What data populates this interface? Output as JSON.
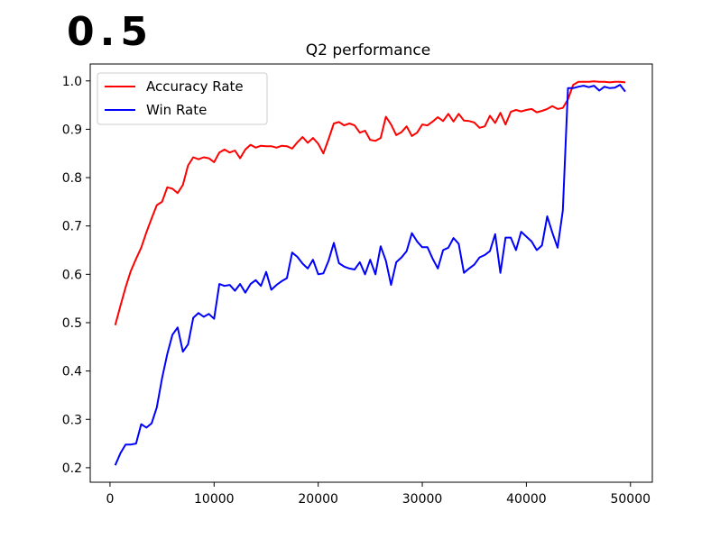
{
  "annotation": "0.5",
  "chart_data": {
    "type": "line",
    "title": "Q2 performance",
    "xlabel": "",
    "ylabel": "",
    "xlim": [
      -1900,
      52100
    ],
    "ylim": [
      0.17,
      1.035
    ],
    "xticks": [
      0,
      10000,
      20000,
      30000,
      40000,
      50000
    ],
    "yticks": [
      0.2,
      0.3,
      0.4,
      0.5,
      0.6,
      0.7,
      0.8,
      0.9,
      1.0
    ],
    "grid": false,
    "legend": "upper left",
    "series": [
      {
        "name": "Accuracy Rate",
        "color": "#ff0000",
        "x": [
          500,
          1000,
          1500,
          2000,
          2500,
          3000,
          3500,
          4000,
          4500,
          5000,
          5500,
          6000,
          6500,
          7000,
          7500,
          8000,
          8500,
          9000,
          9500,
          10000,
          10500,
          11000,
          11500,
          12000,
          12500,
          13000,
          13500,
          14000,
          14500,
          15000,
          15500,
          16000,
          16500,
          17000,
          17500,
          18000,
          18500,
          19000,
          19500,
          20000,
          20500,
          21000,
          21500,
          22000,
          22500,
          23000,
          23500,
          24000,
          24500,
          25000,
          25500,
          26000,
          26500,
          27000,
          27500,
          28000,
          28500,
          29000,
          29500,
          30000,
          30500,
          31000,
          31500,
          32000,
          32500,
          33000,
          33500,
          34000,
          34500,
          35000,
          35500,
          36000,
          36500,
          37000,
          37500,
          38000,
          38500,
          39000,
          39500,
          40000,
          40500,
          41000,
          41500,
          42000,
          42500,
          43000,
          43500,
          44000,
          44500,
          45000,
          45500,
          46000,
          46500,
          47000,
          47500,
          48000,
          48500,
          49000,
          49500
        ],
        "values": [
          0.495,
          0.535,
          0.573,
          0.607,
          0.632,
          0.655,
          0.687,
          0.716,
          0.743,
          0.75,
          0.78,
          0.777,
          0.768,
          0.785,
          0.825,
          0.842,
          0.838,
          0.842,
          0.84,
          0.832,
          0.852,
          0.858,
          0.852,
          0.856,
          0.84,
          0.858,
          0.868,
          0.862,
          0.866,
          0.865,
          0.865,
          0.862,
          0.866,
          0.865,
          0.86,
          0.873,
          0.884,
          0.872,
          0.882,
          0.87,
          0.85,
          0.88,
          0.912,
          0.915,
          0.908,
          0.912,
          0.908,
          0.893,
          0.897,
          0.878,
          0.876,
          0.882,
          0.926,
          0.91,
          0.888,
          0.894,
          0.906,
          0.886,
          0.893,
          0.91,
          0.908,
          0.916,
          0.925,
          0.917,
          0.932,
          0.916,
          0.932,
          0.918,
          0.917,
          0.914,
          0.903,
          0.906,
          0.928,
          0.913,
          0.934,
          0.91,
          0.936,
          0.94,
          0.937,
          0.94,
          0.942,
          0.935,
          0.938,
          0.942,
          0.948,
          0.942,
          0.944,
          0.962,
          0.992,
          0.998,
          0.998,
          0.998,
          0.999,
          0.998,
          0.998,
          0.997,
          0.998,
          0.998,
          0.997
        ]
      },
      {
        "name": "Win Rate",
        "color": "#0000ff",
        "x": [
          500,
          1000,
          1500,
          2000,
          2500,
          3000,
          3500,
          4000,
          4500,
          5000,
          5500,
          6000,
          6500,
          7000,
          7500,
          8000,
          8500,
          9000,
          9500,
          10000,
          10500,
          11000,
          11500,
          12000,
          12500,
          13000,
          13500,
          14000,
          14500,
          15000,
          15500,
          16000,
          16500,
          17000,
          17500,
          18000,
          18500,
          19000,
          19500,
          20000,
          20500,
          21000,
          21500,
          22000,
          22500,
          23000,
          23500,
          24000,
          24500,
          25000,
          25500,
          26000,
          26500,
          27000,
          27500,
          28000,
          28500,
          29000,
          29500,
          30000,
          30500,
          31000,
          31500,
          32000,
          32500,
          33000,
          33500,
          34000,
          34500,
          35000,
          35500,
          36000,
          36500,
          37000,
          37500,
          38000,
          38500,
          39000,
          39500,
          40000,
          40500,
          41000,
          41500,
          42000,
          42500,
          43000,
          43500,
          44000,
          44500,
          45000,
          45500,
          46000,
          46500,
          47000,
          47500,
          48000,
          48500,
          49000,
          49500
        ],
        "values": [
          0.205,
          0.23,
          0.248,
          0.248,
          0.25,
          0.29,
          0.283,
          0.292,
          0.325,
          0.385,
          0.435,
          0.475,
          0.49,
          0.44,
          0.455,
          0.51,
          0.52,
          0.512,
          0.518,
          0.508,
          0.58,
          0.576,
          0.578,
          0.566,
          0.58,
          0.562,
          0.58,
          0.588,
          0.576,
          0.605,
          0.568,
          0.578,
          0.586,
          0.592,
          0.645,
          0.636,
          0.622,
          0.612,
          0.63,
          0.6,
          0.602,
          0.628,
          0.665,
          0.623,
          0.616,
          0.612,
          0.61,
          0.625,
          0.6,
          0.63,
          0.6,
          0.658,
          0.628,
          0.578,
          0.625,
          0.635,
          0.648,
          0.685,
          0.668,
          0.656,
          0.656,
          0.632,
          0.612,
          0.65,
          0.655,
          0.675,
          0.663,
          0.603,
          0.612,
          0.62,
          0.635,
          0.64,
          0.648,
          0.683,
          0.603,
          0.676,
          0.676,
          0.65,
          0.688,
          0.678,
          0.668,
          0.65,
          0.66,
          0.72,
          0.686,
          0.655,
          0.732,
          0.985,
          0.985,
          0.988,
          0.99,
          0.987,
          0.99,
          0.98,
          0.988,
          0.985,
          0.986,
          0.992,
          0.978
        ]
      }
    ]
  }
}
